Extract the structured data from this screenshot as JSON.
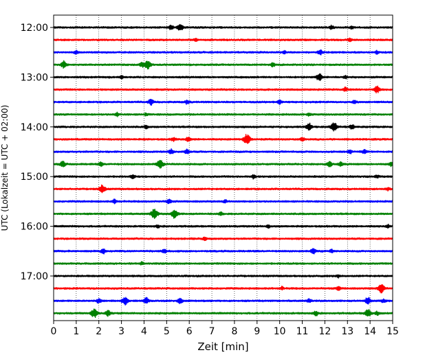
{
  "chart_data": {
    "type": "line",
    "title": "",
    "xlabel": "Zeit  [min]",
    "ylabel": "UTC (Lokalzeit = UTC + 02:00)",
    "xlim": [
      0,
      15
    ],
    "x_ticks": [
      0,
      1,
      2,
      3,
      4,
      5,
      6,
      7,
      8,
      9,
      10,
      11,
      12,
      13,
      14,
      15
    ],
    "x_tick_labels": [
      "0",
      "1",
      "2",
      "3",
      "4",
      "5",
      "6",
      "7",
      "8",
      "9",
      "10",
      "11",
      "12",
      "13",
      "14",
      "15"
    ],
    "y_ticks": [
      {
        "label": "12:00",
        "minutes": 720
      },
      {
        "label": "13:00",
        "minutes": 780
      },
      {
        "label": "14:00",
        "minutes": 840
      },
      {
        "label": "15:00",
        "minutes": 900
      },
      {
        "label": "16:00",
        "minutes": 960
      },
      {
        "label": "17:00",
        "minutes": 1020
      }
    ],
    "trace_interval_min": 15,
    "grid": "vertical dotted lines at each minute",
    "colors": [
      "#000000",
      "#ff0000",
      "#0000ff",
      "#008000"
    ],
    "traces": [
      {
        "start": "12:00",
        "color": "#000000",
        "events": [
          [
            5.2,
            0.5
          ],
          [
            5.6,
            0.7
          ],
          [
            12.3,
            0.4
          ],
          [
            13.2,
            0.3
          ]
        ]
      },
      {
        "start": "12:15",
        "color": "#ff0000",
        "events": [
          [
            6.3,
            0.3
          ],
          [
            13.1,
            0.3
          ]
        ]
      },
      {
        "start": "12:30",
        "color": "#0000ff",
        "events": [
          [
            1.0,
            0.3
          ],
          [
            10.2,
            0.3
          ],
          [
            11.8,
            0.5
          ],
          [
            14.3,
            0.3
          ]
        ]
      },
      {
        "start": "12:45",
        "color": "#008000",
        "events": [
          [
            0.45,
            0.7
          ],
          [
            3.9,
            0.4
          ],
          [
            4.15,
            0.9
          ],
          [
            9.7,
            0.4
          ]
        ]
      },
      {
        "start": "13:00",
        "color": "#000000",
        "events": [
          [
            3.0,
            0.3
          ],
          [
            11.75,
            0.7
          ],
          [
            12.9,
            0.3
          ]
        ]
      },
      {
        "start": "13:15",
        "color": "#ff0000",
        "events": [
          [
            12.9,
            0.4
          ],
          [
            14.3,
            0.7
          ]
        ]
      },
      {
        "start": "13:30",
        "color": "#0000ff",
        "events": [
          [
            4.3,
            0.6
          ],
          [
            5.9,
            0.4
          ],
          [
            10.0,
            0.4
          ],
          [
            13.3,
            0.3
          ]
        ]
      },
      {
        "start": "13:45",
        "color": "#008000",
        "events": [
          [
            2.8,
            0.4
          ],
          [
            4.1,
            0.3
          ],
          [
            11.3,
            0.3
          ]
        ]
      },
      {
        "start": "14:00",
        "color": "#000000",
        "events": [
          [
            4.1,
            0.3
          ],
          [
            11.3,
            0.7
          ],
          [
            12.4,
            0.9
          ],
          [
            13.2,
            0.5
          ]
        ]
      },
      {
        "start": "14:15",
        "color": "#ff0000",
        "events": [
          [
            5.3,
            0.4
          ],
          [
            5.95,
            0.5
          ],
          [
            8.55,
            1.0
          ],
          [
            11.0,
            0.4
          ]
        ]
      },
      {
        "start": "14:30",
        "color": "#0000ff",
        "events": [
          [
            5.2,
            0.5
          ],
          [
            5.9,
            0.5
          ],
          [
            13.1,
            0.4
          ],
          [
            13.75,
            0.4
          ]
        ]
      },
      {
        "start": "14:45",
        "color": "#008000",
        "events": [
          [
            0.4,
            0.6
          ],
          [
            2.1,
            0.4
          ],
          [
            4.7,
            0.9
          ],
          [
            12.2,
            0.6
          ],
          [
            12.7,
            0.4
          ],
          [
            14.95,
            0.5
          ]
        ]
      },
      {
        "start": "15:00",
        "color": "#000000",
        "events": [
          [
            3.5,
            0.4
          ],
          [
            8.85,
            0.4
          ],
          [
            14.3,
            0.3
          ]
        ]
      },
      {
        "start": "15:15",
        "color": "#ff0000",
        "events": [
          [
            2.15,
            0.8
          ],
          [
            14.8,
            0.3
          ]
        ]
      },
      {
        "start": "15:30",
        "color": "#0000ff",
        "events": [
          [
            2.7,
            0.4
          ],
          [
            5.1,
            0.5
          ],
          [
            7.6,
            0.3
          ]
        ]
      },
      {
        "start": "15:45",
        "color": "#008000",
        "events": [
          [
            4.45,
            1.0
          ],
          [
            5.35,
            0.9
          ],
          [
            7.4,
            0.3
          ]
        ]
      },
      {
        "start": "16:00",
        "color": "#000000",
        "events": [
          [
            4.6,
            0.3
          ],
          [
            9.5,
            0.3
          ],
          [
            14.8,
            0.3
          ]
        ]
      },
      {
        "start": "16:15",
        "color": "#ff0000",
        "events": [
          [
            6.7,
            0.3
          ]
        ]
      },
      {
        "start": "16:30",
        "color": "#0000ff",
        "events": [
          [
            2.2,
            0.5
          ],
          [
            4.9,
            0.4
          ],
          [
            11.5,
            0.6
          ],
          [
            12.3,
            0.3
          ]
        ]
      },
      {
        "start": "16:45",
        "color": "#008000",
        "events": [
          [
            3.9,
            0.3
          ]
        ]
      },
      {
        "start": "17:00",
        "color": "#000000",
        "events": [
          [
            12.6,
            0.3
          ]
        ]
      },
      {
        "start": "17:15",
        "color": "#ff0000",
        "events": [
          [
            10.1,
            0.3
          ],
          [
            12.6,
            0.4
          ],
          [
            14.5,
            0.9
          ]
        ]
      },
      {
        "start": "17:30",
        "color": "#0000ff",
        "events": [
          [
            2.0,
            0.5
          ],
          [
            3.15,
            0.8
          ],
          [
            4.1,
            0.6
          ],
          [
            5.6,
            0.6
          ],
          [
            11.3,
            0.4
          ],
          [
            13.9,
            0.7
          ],
          [
            14.6,
            0.4
          ]
        ]
      },
      {
        "start": "17:45",
        "color": "#008000",
        "events": [
          [
            1.8,
            0.9
          ],
          [
            2.4,
            0.6
          ],
          [
            11.6,
            0.5
          ],
          [
            13.9,
            0.8
          ],
          [
            14.3,
            0.4
          ]
        ]
      }
    ]
  }
}
